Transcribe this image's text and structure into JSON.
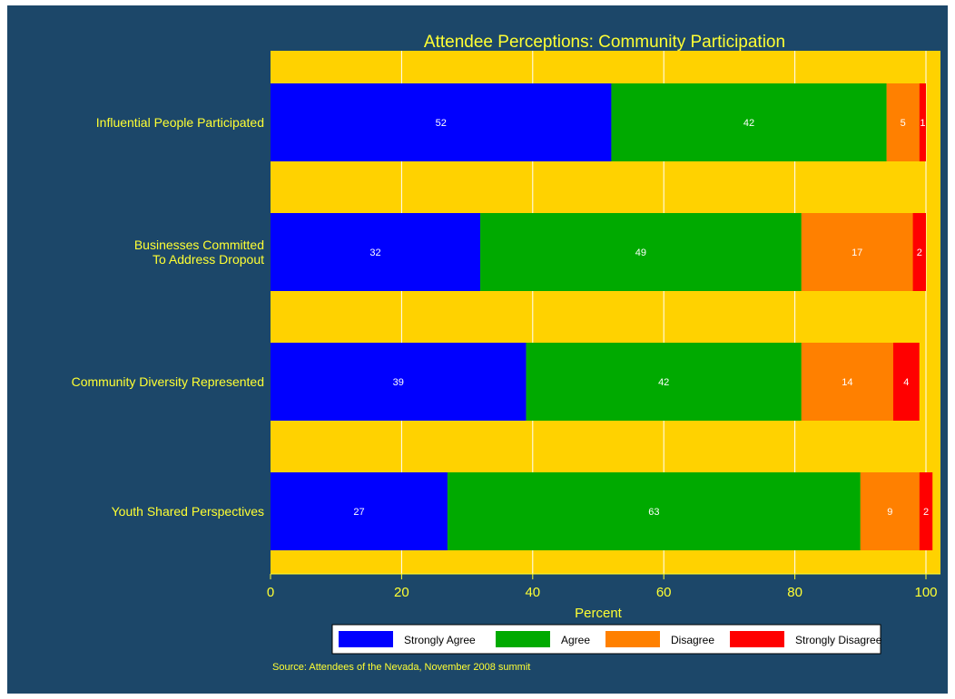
{
  "colors": {
    "background": "#1c4769",
    "plot_region": "#ffd200",
    "text": "#ffff33",
    "grid": "#ffffff",
    "bar_label": "#ffffff"
  },
  "chart_data": {
    "type": "bar",
    "orientation": "horizontal",
    "stacked": true,
    "title": "Attendee Perceptions: Community Participation",
    "xlabel": "Percent",
    "source_note": "Source: Attendees of the Nevada, November 2008 summit",
    "xlim": [
      0,
      100
    ],
    "xticks": [
      0,
      20,
      40,
      60,
      80,
      100
    ],
    "grid": true,
    "legend_position": "bottom",
    "categories": [
      [
        "Influential People Participated"
      ],
      [
        "Businesses Committed",
        "To Address Dropout"
      ],
      [
        "Community Diversity Represented"
      ],
      [
        "Youth Shared Perspectives"
      ]
    ],
    "series": [
      {
        "name": "Strongly Agree",
        "color": "#0000ff",
        "values": [
          52,
          32,
          39,
          27
        ]
      },
      {
        "name": "Agree",
        "color": "#00aa00",
        "values": [
          42,
          49,
          42,
          63
        ]
      },
      {
        "name": "Disagree",
        "color": "#ff8000",
        "values": [
          5,
          17,
          14,
          9
        ]
      },
      {
        "name": "Strongly Disagree",
        "color": "#ff0000",
        "values": [
          1,
          2,
          4,
          2
        ]
      }
    ]
  }
}
